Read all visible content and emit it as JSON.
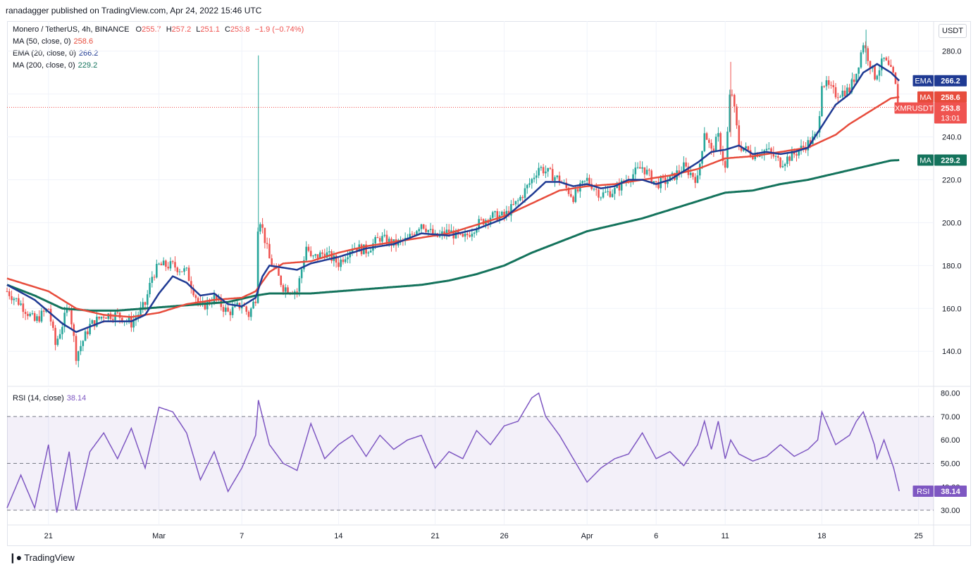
{
  "header": {
    "published": "ranadagger published on TradingView.com, Apr 24, 2022 15:46 UTC"
  },
  "legend": {
    "symbol": "Monero / TetherUS, 4h, BINANCE",
    "o_label": "O",
    "o": "255.7",
    "h_label": "H",
    "h": "257.2",
    "l_label": "L",
    "l": "251.1",
    "c_label": "C",
    "c": "253.8",
    "change": "−1.9 (−0.74%)",
    "ma50_label": "MA (50, close, 0)",
    "ma50_value": "258.6",
    "ema20_label": "EMA (20, close, 0)",
    "ema20_value": "266.2",
    "ma200_label": "MA (200, close, 0)",
    "ma200_value": "229.2",
    "rsi_label": "RSI (14, close)",
    "rsi_value": "38.14"
  },
  "currency_button": "USDT",
  "price_tags": {
    "ema": {
      "name": "EMA",
      "value": "266.2",
      "color": "#1f3a93"
    },
    "ma50": {
      "name": "MA",
      "value": "258.6",
      "color": "#e74c3c"
    },
    "last": {
      "name": "XMRUSDT",
      "value": "253.8",
      "countdown": "13:01",
      "color": "#ef5350"
    },
    "ma200": {
      "name": "MA",
      "value": "229.2",
      "color": "#14735c"
    },
    "rsi": {
      "name": "RSI",
      "value": "38.14",
      "color": "#7e57c2"
    }
  },
  "footer": {
    "logo_text": "TradingView"
  },
  "chart_data": {
    "type": "candlestick",
    "title": "Monero / TetherUS, 4h, BINANCE",
    "price_axis": {
      "ticks": [
        140.0,
        160.0,
        180.0,
        200.0,
        220.0,
        240.0,
        260.0,
        280.0
      ],
      "tick_labels": [
        "140.0",
        "160.0",
        "180.0",
        "200.0",
        "220.0",
        "240.0",
        "",
        "280.0"
      ],
      "range": [
        124,
        294
      ]
    },
    "rsi_axis": {
      "ticks": [
        30.0,
        40.0,
        50.0,
        60.0,
        70.0,
        80.0
      ],
      "tick_labels": [
        "30.00",
        "40.00",
        "50.00",
        "60.00",
        "70.00",
        "80.00"
      ],
      "bands": [
        30,
        70
      ],
      "mid": 50
    },
    "time_axis": {
      "labels": [
        "21",
        "Mar",
        "7",
        "14",
        "21",
        "26",
        "Apr",
        "6",
        "11",
        "18",
        "25"
      ],
      "day_index": [
        3,
        11,
        17,
        24,
        31,
        36,
        42,
        47,
        52,
        59,
        66
      ]
    },
    "close_keypoints": [
      [
        0,
        168
      ],
      [
        1,
        162
      ],
      [
        2,
        154
      ],
      [
        3,
        160
      ],
      [
        3.5,
        143
      ],
      [
        4.5,
        162
      ],
      [
        5,
        138
      ],
      [
        6,
        152
      ],
      [
        7,
        157
      ],
      [
        8,
        157
      ],
      [
        9,
        153
      ],
      [
        10,
        162
      ],
      [
        10.5,
        175
      ],
      [
        11,
        180
      ],
      [
        12,
        180
      ],
      [
        13,
        177
      ],
      [
        14,
        160
      ],
      [
        15,
        165
      ],
      [
        16,
        158
      ],
      [
        17,
        162
      ],
      [
        17.5,
        157
      ],
      [
        18,
        165
      ],
      [
        18.2,
        205
      ],
      [
        19,
        183
      ],
      [
        20,
        170
      ],
      [
        21,
        168
      ],
      [
        21.7,
        190
      ],
      [
        22,
        183
      ],
      [
        23,
        186
      ],
      [
        24,
        181
      ],
      [
        25,
        189
      ],
      [
        26,
        187
      ],
      [
        27,
        193
      ],
      [
        28,
        190
      ],
      [
        29,
        192
      ],
      [
        30,
        200
      ],
      [
        31,
        193
      ],
      [
        32,
        196
      ],
      [
        33,
        192
      ],
      [
        34,
        199
      ],
      [
        35,
        203
      ],
      [
        36,
        203
      ],
      [
        37,
        210
      ],
      [
        38,
        220
      ],
      [
        38.5,
        226
      ],
      [
        39,
        224
      ],
      [
        40,
        220
      ],
      [
        41,
        212
      ],
      [
        42,
        220
      ],
      [
        43,
        213
      ],
      [
        44,
        215
      ],
      [
        45,
        221
      ],
      [
        46,
        226
      ],
      [
        47,
        218
      ],
      [
        48,
        220
      ],
      [
        49,
        226
      ],
      [
        50,
        220
      ],
      [
        50.5,
        243
      ],
      [
        51,
        233
      ],
      [
        51.5,
        240
      ],
      [
        52,
        225
      ],
      [
        52.4,
        265
      ],
      [
        53,
        236
      ],
      [
        54,
        232
      ],
      [
        55,
        234
      ],
      [
        56,
        228
      ],
      [
        57,
        232
      ],
      [
        58,
        237
      ],
      [
        58.7,
        241
      ],
      [
        59,
        266
      ],
      [
        60,
        260
      ],
      [
        61,
        262
      ],
      [
        61.5,
        270
      ],
      [
        62,
        284
      ],
      [
        62.8,
        268
      ],
      [
        63.5,
        276
      ],
      [
        64.2,
        268
      ],
      [
        64.6,
        253.8
      ]
    ],
    "ma50_keypoints": [
      [
        0,
        174
      ],
      [
        3,
        168
      ],
      [
        5,
        160
      ],
      [
        7,
        157
      ],
      [
        9,
        156
      ],
      [
        11,
        158
      ],
      [
        13,
        162
      ],
      [
        15,
        164
      ],
      [
        17,
        165
      ],
      [
        18,
        168
      ],
      [
        19,
        177
      ],
      [
        20,
        181
      ],
      [
        22,
        182
      ],
      [
        24,
        186
      ],
      [
        26,
        189
      ],
      [
        28,
        191
      ],
      [
        30,
        193
      ],
      [
        32,
        195
      ],
      [
        34,
        199
      ],
      [
        36,
        203
      ],
      [
        38,
        209
      ],
      [
        40,
        215
      ],
      [
        42,
        217
      ],
      [
        44,
        218
      ],
      [
        46,
        220
      ],
      [
        48,
        222
      ],
      [
        50,
        225
      ],
      [
        52,
        230
      ],
      [
        54,
        231
      ],
      [
        56,
        233
      ],
      [
        58,
        235
      ],
      [
        60,
        241
      ],
      [
        61,
        246
      ],
      [
        62,
        250
      ],
      [
        63,
        254
      ],
      [
        64,
        258
      ],
      [
        64.6,
        258.6
      ]
    ],
    "ema20_keypoints": [
      [
        0,
        171
      ],
      [
        2,
        164
      ],
      [
        4,
        153
      ],
      [
        5,
        149
      ],
      [
        7,
        154
      ],
      [
        9,
        154
      ],
      [
        10,
        157
      ],
      [
        11,
        167
      ],
      [
        12,
        175
      ],
      [
        13,
        172
      ],
      [
        14,
        166
      ],
      [
        15,
        167
      ],
      [
        16,
        162
      ],
      [
        17,
        161
      ],
      [
        18,
        165
      ],
      [
        18.5,
        175
      ],
      [
        19,
        180
      ],
      [
        20,
        179
      ],
      [
        21,
        178
      ],
      [
        22,
        181
      ],
      [
        24,
        184
      ],
      [
        26,
        188
      ],
      [
        28,
        190
      ],
      [
        30,
        195
      ],
      [
        32,
        194
      ],
      [
        34,
        197
      ],
      [
        36,
        202
      ],
      [
        38,
        213
      ],
      [
        39,
        219
      ],
      [
        40,
        219
      ],
      [
        41,
        217
      ],
      [
        42,
        218
      ],
      [
        43,
        216
      ],
      [
        44,
        217
      ],
      [
        45,
        220
      ],
      [
        46,
        220
      ],
      [
        47,
        218
      ],
      [
        48,
        220
      ],
      [
        50,
        228
      ],
      [
        51,
        233
      ],
      [
        52,
        234
      ],
      [
        53,
        236
      ],
      [
        54,
        232
      ],
      [
        55,
        233
      ],
      [
        56,
        232
      ],
      [
        57,
        233
      ],
      [
        58,
        235
      ],
      [
        59,
        245
      ],
      [
        60,
        255
      ],
      [
        61,
        260
      ],
      [
        62,
        270
      ],
      [
        63,
        274
      ],
      [
        64,
        270
      ],
      [
        64.6,
        266.2
      ]
    ],
    "ma200_keypoints": [
      [
        0,
        171
      ],
      [
        2,
        166
      ],
      [
        3,
        163
      ],
      [
        4,
        160
      ],
      [
        6,
        159
      ],
      [
        8,
        159
      ],
      [
        10,
        160
      ],
      [
        12,
        161
      ],
      [
        14,
        162
      ],
      [
        16,
        163
      ],
      [
        18,
        166
      ],
      [
        19,
        167
      ],
      [
        20,
        167
      ],
      [
        22,
        167
      ],
      [
        24,
        168
      ],
      [
        26,
        169
      ],
      [
        28,
        170
      ],
      [
        30,
        171
      ],
      [
        32,
        173
      ],
      [
        34,
        176
      ],
      [
        36,
        180
      ],
      [
        38,
        186
      ],
      [
        40,
        191
      ],
      [
        42,
        196
      ],
      [
        44,
        199
      ],
      [
        46,
        202
      ],
      [
        48,
        206
      ],
      [
        50,
        210
      ],
      [
        52,
        214
      ],
      [
        54,
        215
      ],
      [
        56,
        218
      ],
      [
        58,
        220
      ],
      [
        60,
        223
      ],
      [
        62,
        226
      ],
      [
        64,
        229
      ],
      [
        64.6,
        229.2
      ]
    ],
    "rsi_keypoints": [
      [
        0,
        31
      ],
      [
        1,
        45
      ],
      [
        2,
        31
      ],
      [
        3,
        58
      ],
      [
        3.6,
        29
      ],
      [
        4.5,
        55
      ],
      [
        5,
        30
      ],
      [
        6,
        55
      ],
      [
        7,
        63
      ],
      [
        8,
        52
      ],
      [
        9,
        65
      ],
      [
        10,
        48
      ],
      [
        11,
        74
      ],
      [
        12,
        72
      ],
      [
        13,
        63
      ],
      [
        14,
        43
      ],
      [
        15,
        55
      ],
      [
        16,
        38
      ],
      [
        17,
        48
      ],
      [
        18,
        62
      ],
      [
        18.2,
        77
      ],
      [
        19,
        58
      ],
      [
        20,
        50
      ],
      [
        21,
        47
      ],
      [
        22,
        67
      ],
      [
        23,
        52
      ],
      [
        24,
        58
      ],
      [
        25,
        62
      ],
      [
        26,
        53
      ],
      [
        27,
        62
      ],
      [
        28,
        56
      ],
      [
        29,
        60
      ],
      [
        30,
        62
      ],
      [
        31,
        48
      ],
      [
        32,
        55
      ],
      [
        33,
        52
      ],
      [
        34,
        64
      ],
      [
        35,
        58
      ],
      [
        36,
        66
      ],
      [
        37,
        68
      ],
      [
        38,
        78
      ],
      [
        38.5,
        80
      ],
      [
        39,
        70
      ],
      [
        40,
        62
      ],
      [
        41,
        52
      ],
      [
        42,
        42
      ],
      [
        43,
        48
      ],
      [
        44,
        52
      ],
      [
        45,
        54
      ],
      [
        46,
        63
      ],
      [
        47,
        52
      ],
      [
        48,
        55
      ],
      [
        49,
        49
      ],
      [
        50,
        58
      ],
      [
        50.5,
        68
      ],
      [
        51,
        56
      ],
      [
        51.5,
        68
      ],
      [
        52,
        52
      ],
      [
        52.4,
        60
      ],
      [
        53,
        54
      ],
      [
        54,
        51
      ],
      [
        55,
        53
      ],
      [
        56,
        58
      ],
      [
        57,
        53
      ],
      [
        58,
        56
      ],
      [
        58.7,
        60
      ],
      [
        59,
        72
      ],
      [
        60,
        58
      ],
      [
        61,
        62
      ],
      [
        61.5,
        68
      ],
      [
        62,
        72
      ],
      [
        62.8,
        58
      ],
      [
        63,
        52
      ],
      [
        63.5,
        60
      ],
      [
        64.2,
        48
      ],
      [
        64.6,
        38.14
      ]
    ]
  }
}
